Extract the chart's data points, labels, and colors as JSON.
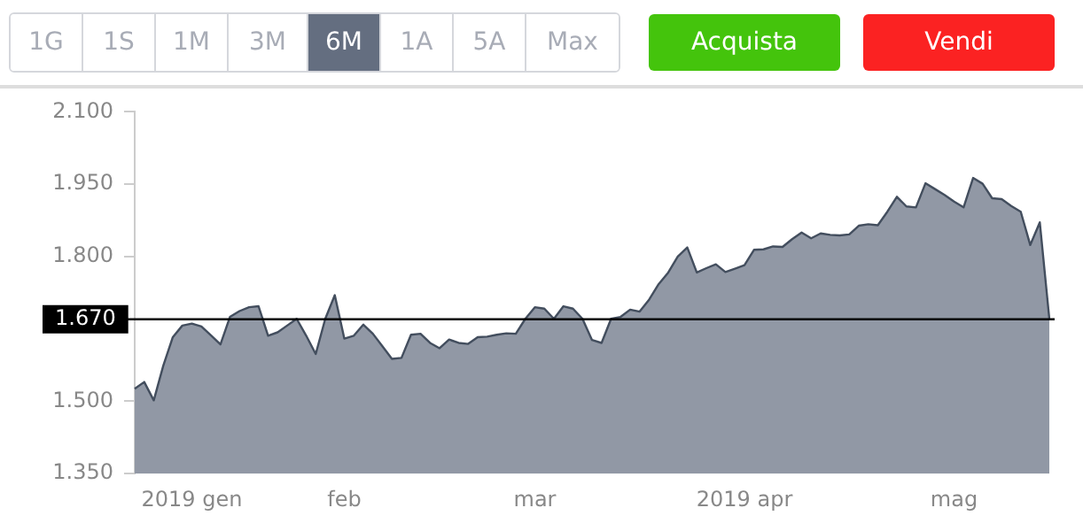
{
  "chart_data": {
    "type": "area",
    "categories": [
      null,
      null,
      null,
      null,
      null,
      null,
      "2019 gen",
      null,
      null,
      null,
      null,
      null,
      null,
      null,
      null,
      null,
      null,
      null,
      null,
      null,
      null,
      null,
      "feb",
      null,
      null,
      null,
      null,
      null,
      null,
      null,
      null,
      null,
      null,
      null,
      null,
      null,
      null,
      null,
      null,
      null,
      null,
      null,
      "mar",
      null,
      null,
      null,
      null,
      null,
      null,
      null,
      null,
      null,
      null,
      null,
      null,
      null,
      null,
      null,
      null,
      null,
      null,
      null,
      null,
      null,
      "2019 apr",
      null,
      null,
      null,
      null,
      null,
      null,
      null,
      null,
      null,
      null,
      null,
      null,
      null,
      null,
      null,
      null,
      null,
      null,
      null,
      null,
      null,
      "mag",
      null,
      null,
      null,
      null,
      null,
      null,
      null,
      null,
      null,
      null
    ],
    "series": [
      {
        "color": "#9198a5",
        "values": [
          1526,
          1540,
          1502,
          1574,
          1633,
          1657,
          1661,
          1655,
          1637,
          1618,
          1675,
          1687,
          1695,
          1697,
          1636,
          1643,
          1657,
          1671,
          1636,
          1598,
          1671,
          1720,
          1630,
          1636,
          1659,
          1640,
          1614,
          1588,
          1590,
          1638,
          1640,
          1621,
          1610,
          1628,
          1621,
          1619,
          1633,
          1634,
          1638,
          1641,
          1640,
          1671,
          1695,
          1692,
          1671,
          1697,
          1692,
          1671,
          1627,
          1621,
          1671,
          1675,
          1690,
          1686,
          1711,
          1743,
          1767,
          1800,
          1819,
          1767,
          1776,
          1784,
          1768,
          1775,
          1782,
          1814,
          1815,
          1821,
          1820,
          1836,
          1850,
          1838,
          1848,
          1845,
          1844,
          1846,
          1864,
          1867,
          1865,
          1893,
          1924,
          1904,
          1902,
          1952,
          1940,
          1928,
          1914,
          1902,
          1963,
          1951,
          1921,
          1919,
          1905,
          1893,
          1824,
          1871,
          1671
        ]
      }
    ],
    "ylim": [
      1350,
      2100
    ],
    "yticks": [
      {
        "value": 1350,
        "label": "1.350"
      },
      {
        "value": 1500,
        "label": "1.500"
      },
      {
        "value": 1800,
        "label": "1.800"
      },
      {
        "value": 1950,
        "label": "1.950"
      },
      {
        "value": 2100,
        "label": "2.100"
      }
    ],
    "ref_lines": [
      {
        "axis": "y",
        "value": 1670,
        "label": "1.670",
        "color": "#000000"
      }
    ],
    "annotations": [
      "1G",
      "1S",
      "1M",
      "3M",
      "6M",
      "1A",
      "5A",
      "Max",
      "Acquista",
      "Vendi"
    ],
    "grid": false,
    "legend": false,
    "marker": "none"
  }
}
